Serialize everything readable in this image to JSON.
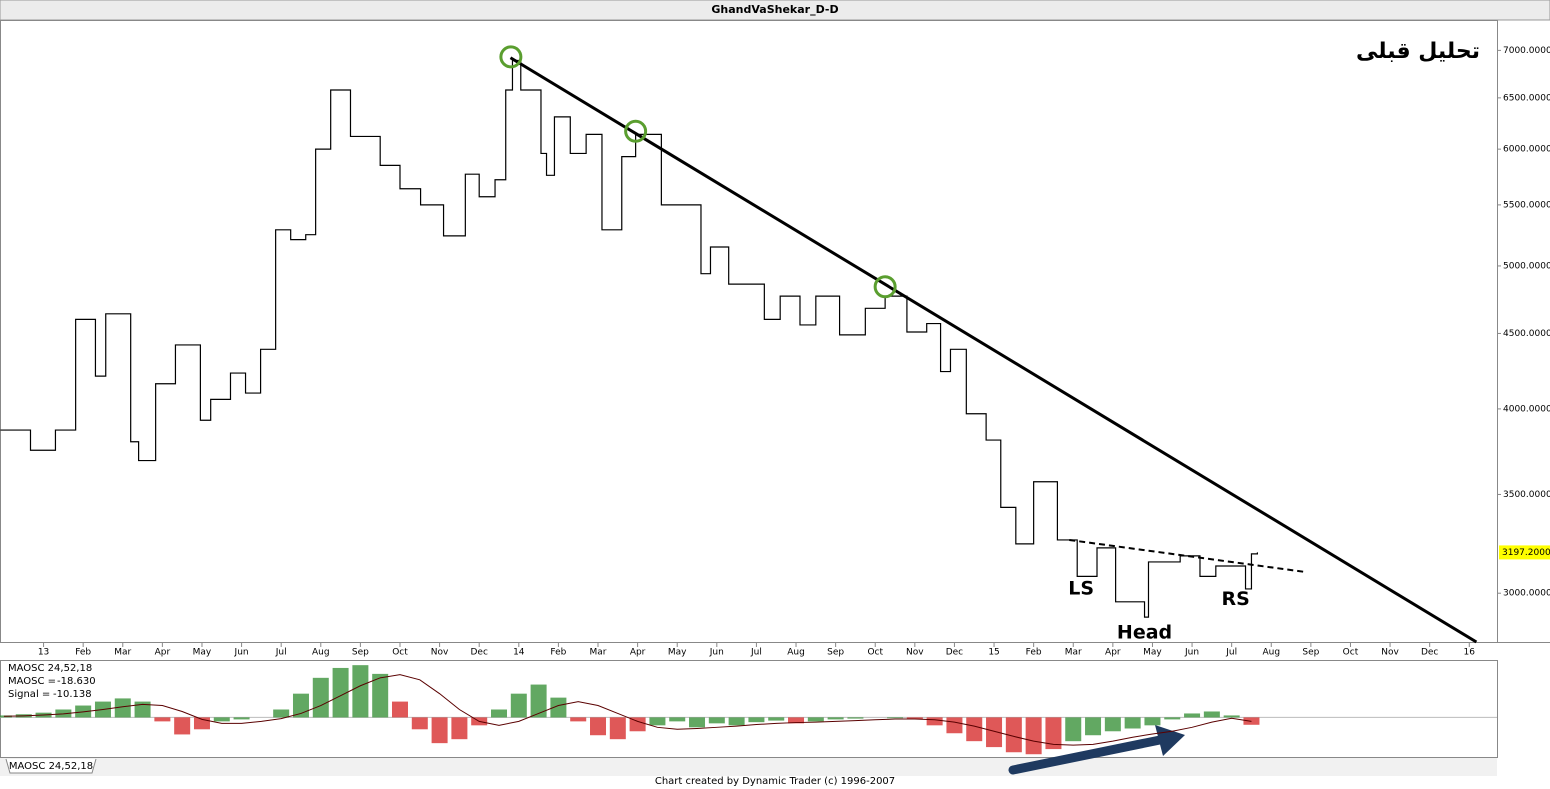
{
  "window_title": "GhandVaShekar_D-D",
  "footer": "Chart created by Dynamic Trader  (c) 1996-2007",
  "tab": "MAOSC 24,52,18",
  "chart_data": [
    {
      "type": "line",
      "note_title": "تحلیل قبلی",
      "log_scale": true,
      "color": "#000000",
      "xlim": [
        -1.1,
        36.7
      ],
      "ylim": [
        2780,
        7340
      ],
      "xticks": [
        {
          "value": 0,
          "label": "13"
        },
        {
          "value": 1,
          "label": "Feb"
        },
        {
          "value": 2,
          "label": "Mar"
        },
        {
          "value": 3,
          "label": "Apr"
        },
        {
          "value": 4,
          "label": "May"
        },
        {
          "value": 5,
          "label": "Jun"
        },
        {
          "value": 6,
          "label": "Jul"
        },
        {
          "value": 7,
          "label": "Aug"
        },
        {
          "value": 8,
          "label": "Sep"
        },
        {
          "value": 9,
          "label": "Oct"
        },
        {
          "value": 10,
          "label": "Nov"
        },
        {
          "value": 11,
          "label": "Dec"
        },
        {
          "value": 12,
          "label": "14"
        },
        {
          "value": 13,
          "label": "Feb"
        },
        {
          "value": 14,
          "label": "Mar"
        },
        {
          "value": 15,
          "label": "Apr"
        },
        {
          "value": 16,
          "label": "May"
        },
        {
          "value": 17,
          "label": "Jun"
        },
        {
          "value": 18,
          "label": "Jul"
        },
        {
          "value": 19,
          "label": "Aug"
        },
        {
          "value": 20,
          "label": "Sep"
        },
        {
          "value": 21,
          "label": "Oct"
        },
        {
          "value": 22,
          "label": "Nov"
        },
        {
          "value": 23,
          "label": "Dec"
        },
        {
          "value": 24,
          "label": "15"
        },
        {
          "value": 25,
          "label": "Feb"
        },
        {
          "value": 26,
          "label": "Mar"
        },
        {
          "value": 27,
          "label": "Apr"
        },
        {
          "value": 28,
          "label": "May"
        },
        {
          "value": 29,
          "label": "Jun"
        },
        {
          "value": 30,
          "label": "Jul"
        },
        {
          "value": 31,
          "label": "Aug"
        },
        {
          "value": 32,
          "label": "Sep"
        },
        {
          "value": 33,
          "label": "Oct"
        },
        {
          "value": 34,
          "label": "Nov"
        },
        {
          "value": 35,
          "label": "Dec"
        },
        {
          "value": 36,
          "label": "16"
        }
      ],
      "yticks": [
        {
          "value": 7000,
          "label": "7000.0000"
        },
        {
          "value": 6500,
          "label": "6500.0000"
        },
        {
          "value": 6000,
          "label": "6000.0000"
        },
        {
          "value": 5500,
          "label": "5500.0000"
        },
        {
          "value": 5000,
          "label": "5000.0000"
        },
        {
          "value": 4500,
          "label": "4500.0000"
        },
        {
          "value": 4000,
          "label": "4000.0000"
        },
        {
          "value": 3500,
          "label": "3500.0000"
        },
        {
          "value": 3000,
          "label": "3000.0000"
        }
      ],
      "x": [
        -1.09,
        -0.33,
        0.3,
        0.81,
        1.31,
        1.57,
        2.2,
        2.4,
        2.83,
        3.33,
        3.96,
        4.22,
        4.72,
        5.1,
        5.48,
        5.86,
        6.24,
        6.62,
        6.87,
        7.25,
        7.75,
        8.5,
        9.0,
        9.52,
        10.1,
        10.65,
        11.0,
        11.4,
        11.67,
        11.84,
        12.05,
        12.56,
        12.7,
        12.9,
        13.3,
        13.7,
        14.1,
        14.6,
        14.95,
        15.6,
        16.6,
        16.84,
        17.3,
        18.2,
        18.6,
        19.1,
        19.5,
        20.1,
        20.75,
        21.25,
        21.8,
        22.3,
        22.65,
        22.9,
        23.3,
        23.8,
        24.17,
        24.55,
        25.0,
        25.6,
        26.1,
        26.6,
        27.07,
        27.8,
        27.9,
        28.7,
        29.2,
        29.6,
        30.35,
        30.5,
        30.65
      ],
      "values": [
        3870,
        3750,
        3870,
        4600,
        4210,
        4640,
        3800,
        3690,
        4160,
        4420,
        3930,
        4060,
        4230,
        4100,
        4390,
        5290,
        5210,
        5250,
        6000,
        6580,
        6120,
        5850,
        5640,
        5500,
        5240,
        5770,
        5570,
        5720,
        6580,
        6890,
        6580,
        5960,
        5760,
        6310,
        5960,
        6140,
        5290,
        5930,
        6140,
        5500,
        4940,
        5150,
        4860,
        4600,
        4770,
        4560,
        4770,
        4490,
        4680,
        4770,
        4510,
        4570,
        4240,
        4390,
        3970,
        3810,
        3430,
        3240,
        3570,
        3260,
        3080,
        3220,
        2960,
        2890,
        3150,
        3180,
        3080,
        3130,
        3020,
        3190,
        3197.2
      ],
      "last_price": {
        "value": 3197.2,
        "label": "3197.2000"
      },
      "trendline": {
        "x": [
          11.79,
          36.18
        ],
        "y": [
          6920,
          2780
        ]
      },
      "neckline": {
        "x": [
          25.9,
          31.9
        ],
        "y": [
          3260,
          3100
        ]
      },
      "highlights": [
        {
          "x": 11.8,
          "y": 6930
        },
        {
          "x": 14.95,
          "y": 6170
        },
        {
          "x": 21.25,
          "y": 4840
        }
      ],
      "annotations": [
        {
          "text": "LS",
          "x": 26.2,
          "y": 3020
        },
        {
          "text": "Head",
          "x": 27.8,
          "y": 2820
        },
        {
          "text": "RS",
          "x": 30.1,
          "y": 2970
        }
      ]
    },
    {
      "type": "histogram-oscillator",
      "name": "MAOSC 24,52,18",
      "ylim": [
        -100,
        140
      ],
      "up_color": "#2e8b2e",
      "down_color": "#d42020",
      "signal_color": "#5a0000",
      "x": [
        -1,
        -0.5,
        0,
        0.5,
        1,
        1.5,
        2,
        2.5,
        3,
        3.5,
        4,
        4.5,
        5,
        5.5,
        6,
        6.5,
        7,
        7.5,
        8,
        8.5,
        9,
        9.5,
        10,
        10.5,
        11,
        11.5,
        12,
        12.5,
        13,
        13.5,
        14,
        14.5,
        15,
        15.5,
        16,
        16.5,
        17,
        17.5,
        18,
        18.5,
        19,
        19.5,
        20,
        20.5,
        21,
        21.5,
        22,
        22.5,
        23,
        23.5,
        24,
        24.5,
        25,
        25.5,
        26,
        26.5,
        27,
        27.5,
        28,
        28.5,
        29,
        29.5,
        30,
        30.5
      ],
      "series": [
        {
          "name": "MAOSC =",
          "value_label": "-18.630",
          "values": [
            5,
            8,
            12,
            20,
            30,
            40,
            48,
            40,
            -10,
            -43,
            -30,
            -10,
            -5,
            0,
            20,
            60,
            100,
            125,
            132,
            110,
            40,
            -30,
            -65,
            -55,
            -20,
            20,
            60,
            83,
            50,
            -10,
            -45,
            -55,
            -35,
            -20,
            -10,
            -25,
            -15,
            -20,
            -12,
            -8,
            -15,
            -10,
            -5,
            -3,
            0,
            -2,
            -5,
            -20,
            -40,
            -60,
            -75,
            -88,
            -93,
            -80,
            -60,
            -45,
            -35,
            -28,
            -20,
            -5,
            10,
            15,
            5,
            -18.63
          ]
        },
        {
          "name": "Signal =",
          "value_label": "-10.138",
          "values": [
            3,
            4,
            6,
            9,
            14,
            20,
            27,
            33,
            30,
            15,
            -5,
            -15,
            -15,
            -10,
            -3,
            10,
            30,
            55,
            80,
            100,
            108,
            95,
            60,
            20,
            -10,
            -20,
            -10,
            10,
            30,
            40,
            30,
            10,
            -10,
            -25,
            -30,
            -28,
            -25,
            -22,
            -18,
            -15,
            -13,
            -12,
            -10,
            -8,
            -6,
            -4,
            -4,
            -6,
            -12,
            -22,
            -35,
            -48,
            -60,
            -68,
            -70,
            -68,
            -60,
            -50,
            -42,
            -35,
            -25,
            -12,
            -2,
            -10.138
          ]
        }
      ]
    }
  ]
}
